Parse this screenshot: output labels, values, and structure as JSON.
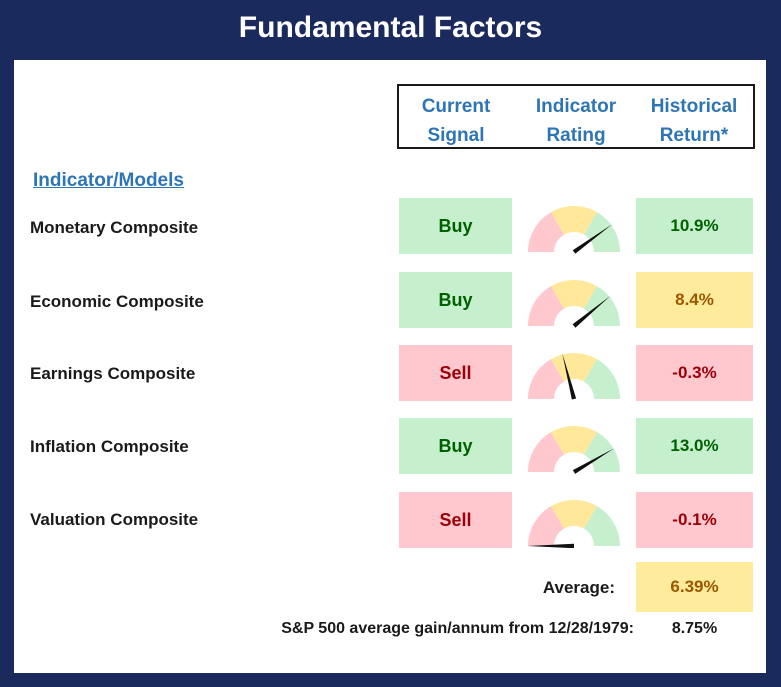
{
  "title": "Fundamental Factors",
  "headers": {
    "signal": [
      "Current",
      "Signal"
    ],
    "rating": [
      "Indicator",
      "Rating"
    ],
    "return": [
      "Historical",
      "Return*"
    ]
  },
  "models_label": "Indicator/Models",
  "rows": [
    {
      "label": "Monetary Composite",
      "signal": "Buy",
      "signal_status": "green",
      "rating_fraction": 0.8,
      "return": "10.9%",
      "return_status": "green"
    },
    {
      "label": "Economic Composite",
      "signal": "Buy",
      "signal_status": "green",
      "rating_fraction": 0.78,
      "return": "8.4%",
      "return_status": "yellow"
    },
    {
      "label": "Earnings Composite",
      "signal": "Sell",
      "signal_status": "red",
      "rating_fraction": 0.42,
      "return": "-0.3%",
      "return_status": "red"
    },
    {
      "label": "Inflation Composite",
      "signal": "Buy",
      "signal_status": "green",
      "rating_fraction": 0.83,
      "return": "13.0%",
      "return_status": "green"
    },
    {
      "label": "Valuation Composite",
      "signal": "Sell",
      "signal_status": "red",
      "rating_fraction": 0.0,
      "return": "-0.1%",
      "return_status": "red"
    }
  ],
  "average": {
    "label": "Average:",
    "value": "6.39%",
    "status": "yellow"
  },
  "sp500": {
    "label": "S&P 500 average gain/annum from 12/28/1979:",
    "value": "8.75%"
  },
  "colors": {
    "frame": "#1b2a5c",
    "header_text": "#2e75b6",
    "gauge_red": "#ffc7ce",
    "gauge_yellow": "#ffe89a",
    "gauge_green": "#c6efce",
    "needle": "#111111"
  }
}
